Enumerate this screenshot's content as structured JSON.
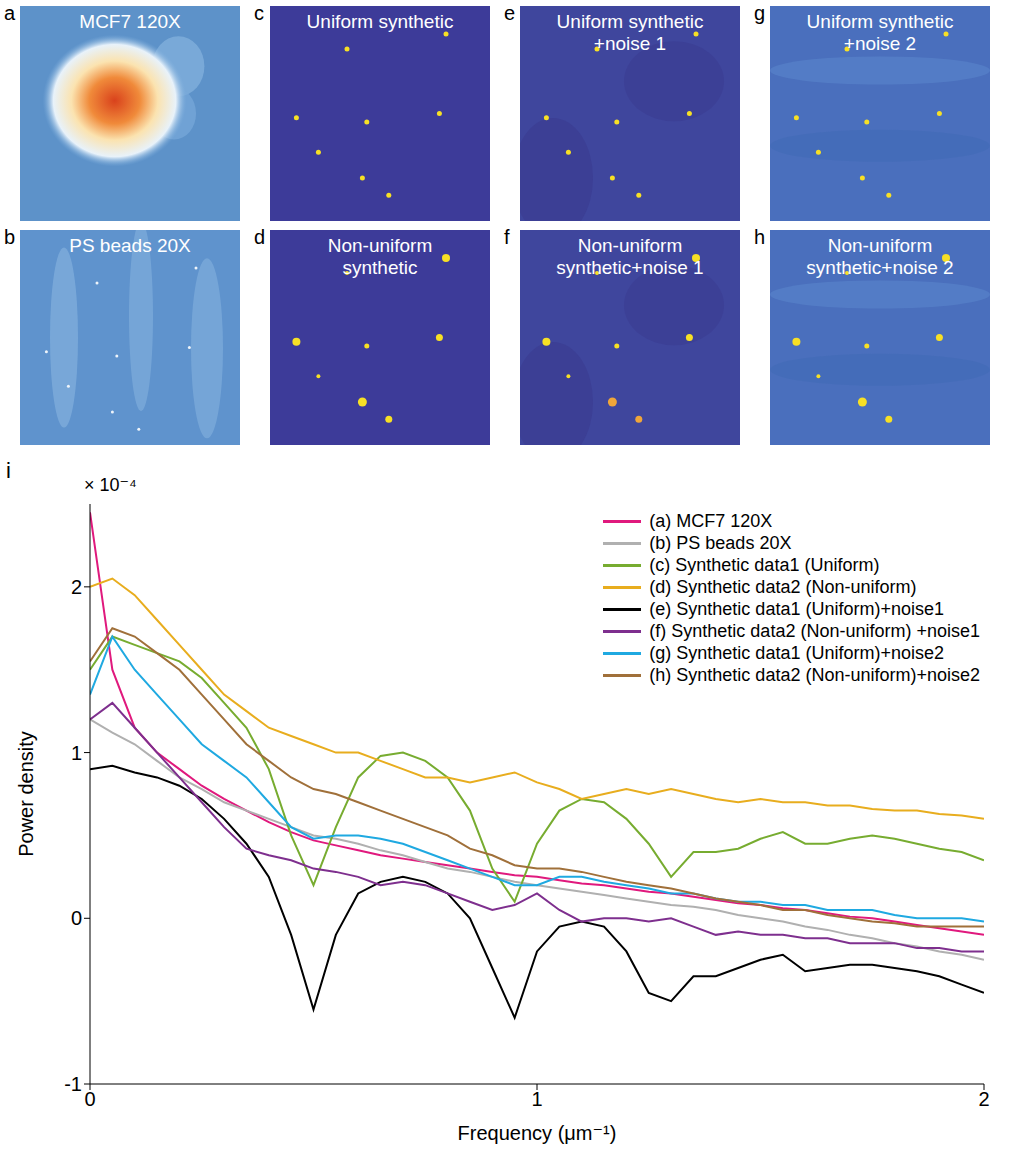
{
  "panels": [
    {
      "letter": "a",
      "title": "MCF7 120X"
    },
    {
      "letter": "b",
      "title": "PS beads 20X"
    },
    {
      "letter": "c",
      "title": "Uniform synthetic"
    },
    {
      "letter": "d",
      "title": "Non-uniform synthetic"
    },
    {
      "letter": "e",
      "title": "Uniform synthetic +noise 1"
    },
    {
      "letter": "f",
      "title": "Non-uniform synthetic+noise 1"
    },
    {
      "letter": "g",
      "title": "Uniform synthetic +noise 2"
    },
    {
      "letter": "h",
      "title": "Non-uniform synthetic+noise 2"
    }
  ],
  "chart_data": {
    "type": "line",
    "panel_letter": "i",
    "y_multiplier": "× 10⁻⁴",
    "x_label": "Frequency (μm⁻¹)",
    "y_label": "Power density",
    "xlim": [
      0,
      2
    ],
    "ylim": [
      -1,
      2.5
    ],
    "xticks": [
      0,
      1,
      2
    ],
    "yticks": [
      -1,
      0,
      1,
      2
    ],
    "grid": false,
    "legend": "upper right",
    "x": [
      0,
      0.05,
      0.1,
      0.15,
      0.2,
      0.25,
      0.3,
      0.35,
      0.4,
      0.45,
      0.5,
      0.55,
      0.6,
      0.65,
      0.7,
      0.75,
      0.8,
      0.85,
      0.9,
      0.95,
      1,
      1.05,
      1.1,
      1.15,
      1.2,
      1.25,
      1.3,
      1.35,
      1.4,
      1.45,
      1.5,
      1.55,
      1.6,
      1.65,
      1.7,
      1.75,
      1.8,
      1.85,
      1.9,
      1.95,
      2
    ],
    "series": [
      {
        "name": "(a) MCF7 120X",
        "color": "#e0197d",
        "values": [
          2.45,
          1.5,
          1.15,
          1.0,
          0.9,
          0.8,
          0.72,
          0.65,
          0.58,
          0.52,
          0.47,
          0.44,
          0.41,
          0.38,
          0.36,
          0.34,
          0.32,
          0.3,
          0.28,
          0.26,
          0.25,
          0.23,
          0.21,
          0.2,
          0.18,
          0.16,
          0.15,
          0.13,
          0.11,
          0.09,
          0.08,
          0.06,
          0.05,
          0.03,
          0.01,
          0,
          -0.02,
          -0.04,
          -0.06,
          -0.08,
          -0.1
        ]
      },
      {
        "name": "(b) PS beads 20X",
        "color": "#b0b0b0",
        "values": [
          1.2,
          1.12,
          1.05,
          0.95,
          0.85,
          0.78,
          0.7,
          0.65,
          0.6,
          0.55,
          0.5,
          0.48,
          0.45,
          0.41,
          0.38,
          0.34,
          0.3,
          0.28,
          0.25,
          0.22,
          0.2,
          0.18,
          0.16,
          0.14,
          0.12,
          0.1,
          0.08,
          0.07,
          0.05,
          0.02,
          0,
          -0.02,
          -0.05,
          -0.07,
          -0.1,
          -0.12,
          -0.15,
          -0.17,
          -0.2,
          -0.22,
          -0.25
        ]
      },
      {
        "name": "(c) Synthetic data1 (Uniform)",
        "color": "#77ac30",
        "values": [
          1.5,
          1.7,
          1.65,
          1.6,
          1.55,
          1.45,
          1.3,
          1.15,
          0.9,
          0.5,
          0.2,
          0.55,
          0.85,
          0.98,
          1.0,
          0.95,
          0.85,
          0.65,
          0.3,
          0.1,
          0.45,
          0.65,
          0.72,
          0.7,
          0.6,
          0.45,
          0.25,
          0.4,
          0.4,
          0.42,
          0.48,
          0.52,
          0.45,
          0.45,
          0.48,
          0.5,
          0.48,
          0.45,
          0.42,
          0.4,
          0.35
        ]
      },
      {
        "name": "(d) Synthetic data2 (Non-uniform)",
        "color": "#e8ad1e",
        "values": [
          2.0,
          2.05,
          1.95,
          1.8,
          1.65,
          1.5,
          1.35,
          1.25,
          1.15,
          1.1,
          1.05,
          1.0,
          1.0,
          0.95,
          0.9,
          0.85,
          0.85,
          0.82,
          0.85,
          0.88,
          0.82,
          0.78,
          0.72,
          0.75,
          0.78,
          0.75,
          0.78,
          0.75,
          0.72,
          0.7,
          0.72,
          0.7,
          0.7,
          0.68,
          0.68,
          0.66,
          0.65,
          0.65,
          0.63,
          0.62,
          0.6
        ]
      },
      {
        "name": "(e) Synthetic data1 (Uniform)+noise1",
        "color": "#000000",
        "values": [
          0.9,
          0.92,
          0.88,
          0.85,
          0.8,
          0.72,
          0.6,
          0.45,
          0.25,
          -0.1,
          -0.55,
          -0.1,
          0.15,
          0.22,
          0.25,
          0.22,
          0.15,
          0,
          -0.3,
          -0.6,
          -0.2,
          -0.05,
          -0.02,
          -0.05,
          -0.2,
          -0.45,
          -0.5,
          -0.35,
          -0.35,
          -0.3,
          -0.25,
          -0.22,
          -0.32,
          -0.3,
          -0.28,
          -0.28,
          -0.3,
          -0.32,
          -0.35,
          -0.4,
          -0.45
        ]
      },
      {
        "name": "(f) Synthetic data2 (Non-uniform) +noise1",
        "color": "#7e2f8e",
        "values": [
          1.2,
          1.3,
          1.15,
          1.0,
          0.85,
          0.7,
          0.55,
          0.42,
          0.38,
          0.35,
          0.3,
          0.28,
          0.25,
          0.2,
          0.22,
          0.2,
          0.15,
          0.1,
          0.05,
          0.08,
          0.15,
          0.05,
          -0.02,
          0,
          0,
          -0.02,
          0,
          -0.05,
          -0.1,
          -0.08,
          -0.1,
          -0.1,
          -0.12,
          -0.12,
          -0.15,
          -0.15,
          -0.15,
          -0.18,
          -0.18,
          -0.2,
          -0.2
        ]
      },
      {
        "name": "(g) Synthetic data1 (Uniform)+noise2",
        "color": "#1fa9e1",
        "values": [
          1.35,
          1.7,
          1.5,
          1.35,
          1.2,
          1.05,
          0.95,
          0.85,
          0.7,
          0.55,
          0.48,
          0.5,
          0.5,
          0.48,
          0.45,
          0.4,
          0.35,
          0.3,
          0.25,
          0.2,
          0.2,
          0.25,
          0.25,
          0.22,
          0.2,
          0.18,
          0.15,
          0.15,
          0.12,
          0.1,
          0.1,
          0.08,
          0.08,
          0.05,
          0.05,
          0.05,
          0.02,
          0,
          0,
          0,
          -0.02
        ]
      },
      {
        "name": "(h) Synthetic data2 (Non-uniform)+noise2",
        "color": "#a0703a",
        "values": [
          1.55,
          1.75,
          1.7,
          1.6,
          1.5,
          1.35,
          1.2,
          1.05,
          0.95,
          0.85,
          0.78,
          0.75,
          0.7,
          0.65,
          0.6,
          0.55,
          0.5,
          0.42,
          0.38,
          0.32,
          0.3,
          0.3,
          0.28,
          0.25,
          0.22,
          0.2,
          0.18,
          0.15,
          0.12,
          0.1,
          0.08,
          0.05,
          0.05,
          0.02,
          0,
          -0.02,
          -0.03,
          -0.05,
          -0.05,
          -0.05,
          -0.05
        ]
      }
    ]
  }
}
